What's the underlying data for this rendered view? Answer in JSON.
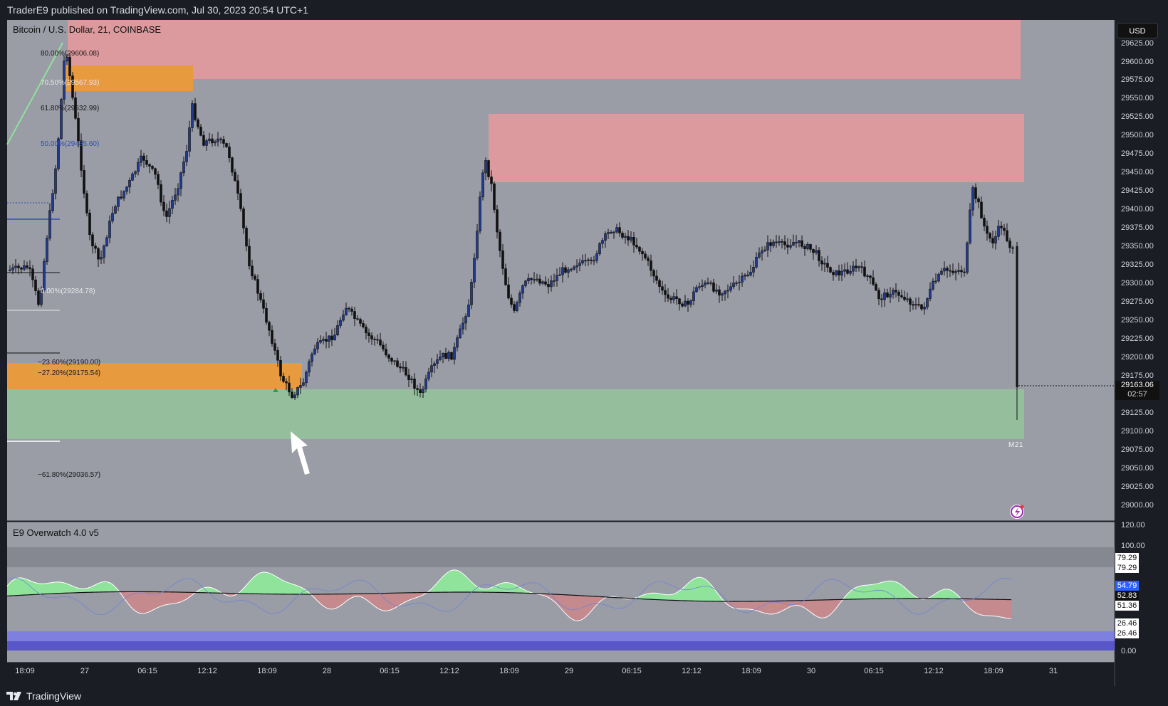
{
  "publish_line": "TraderE9 published on TradingView.com, Jul 30, 2023 20:54 UTC+1",
  "symbol_title": "Bitcoin / U.S. Dollar, 21, COINBASE",
  "currency_button": "USD",
  "indicator_title": "E9 Overwatch 4.0 v5",
  "footer_brand": "TradingView",
  "price_axis": {
    "labels": [
      "29625.00",
      "29600.00",
      "29575.00",
      "29550.00",
      "29525.00",
      "29500.00",
      "29475.00",
      "29450.00",
      "29425.00",
      "29400.00",
      "29375.00",
      "29350.00",
      "29325.00",
      "29300.00",
      "29275.00",
      "29250.00",
      "29225.00",
      "29200.00",
      "29175.00",
      "29125.00",
      "29100.00",
      "29075.00",
      "29050.00",
      "29025.00",
      "29000.00"
    ],
    "current_price": "29163.06",
    "countdown": "02:57",
    "current_price_value": 29163.06
  },
  "indicator_axis": {
    "labels": [
      "120.00",
      "100.00",
      "0.00"
    ],
    "badges": [
      {
        "text": "79.29",
        "bg": "#ffffff",
        "fg": "#111111"
      },
      {
        "text": "79.29",
        "bg": "#ffffff",
        "fg": "#111111"
      },
      {
        "text": "54.79",
        "bg": "#2962ff",
        "fg": "#ffffff"
      },
      {
        "text": "52.83",
        "bg": "#111111",
        "fg": "#ffffff"
      },
      {
        "text": "51.36",
        "bg": "#ffffff",
        "fg": "#111111"
      },
      {
        "text": "26.46",
        "bg": "#ffffff",
        "fg": "#111111"
      },
      {
        "text": "26.46",
        "bg": "#ffffff",
        "fg": "#111111"
      }
    ]
  },
  "time_axis": {
    "labels": [
      "18:09",
      "27",
      "06:15",
      "12:12",
      "18:09",
      "28",
      "06:15",
      "12:12",
      "18:09",
      "29",
      "06:15",
      "12:12",
      "18:09",
      "30",
      "06:15",
      "12:12",
      "18:09",
      "31"
    ]
  },
  "fib_levels": [
    {
      "text": "80.00%(29606.08)",
      "color": "#1a1a1a"
    },
    {
      "text": "70.50%(29567.93)",
      "color": "#e8e8e8"
    },
    {
      "text": "61.80%(29532.99)",
      "color": "#1a1a1a"
    },
    {
      "text": "50.00%(29485.60)",
      "color": "#2f4fb3"
    },
    {
      "text": "0.00%(29284.78)",
      "color": "#e8e8e8"
    },
    {
      "text": "−23.60%(29190.00)",
      "color": "#1a1a1a"
    },
    {
      "text": "−27.20%(29175.54)",
      "color": "#1a1a1a"
    },
    {
      "text": "−61.80%(29036.57)",
      "color": "#1a1a1a"
    }
  ],
  "zone_label": "M21",
  "colors": {
    "background": "#1b1d25",
    "chart_bg": "#9a9ca6",
    "supply_zone": "#dd9a9e",
    "demand_zone": "#95bf9c",
    "orange_zone": "#e89a3e",
    "candle_up": "#1f3a8f",
    "candle_down": "#111111",
    "osc_green": "#8fe39a",
    "osc_red": "#c48a8e",
    "band_blue": "#5856c8"
  }
}
